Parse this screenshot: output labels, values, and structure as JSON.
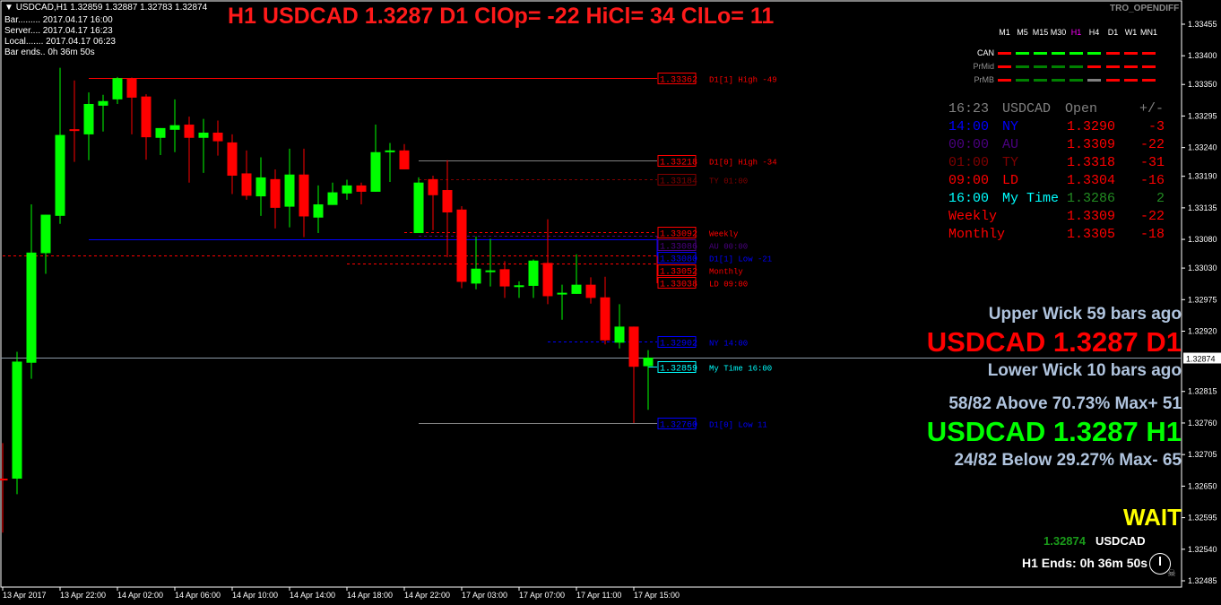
{
  "header": {
    "symbol_line": "USDCAD,H1  1.32859 1.32887 1.32783 1.32874",
    "bar": "Bar......... 2017.04.17 16:00",
    "server": "Server.... 2017.04.17 16:23",
    "local": "Local....... 2017.04.17 06:23",
    "bar_ends": "Bar ends.. 0h 36m 50s"
  },
  "title": "H1 USDCAD 1.3287  D1 ClOp= -22 HiCl= 34 ClLo= 11",
  "indicator_name": "TRO_OPENDIFF",
  "timeframes": [
    "M1",
    "M5",
    "M15",
    "M30",
    "H1",
    "H4",
    "D1",
    "W1",
    "MN1"
  ],
  "matrix": [
    {
      "label": "CAN",
      "colors": [
        "#ff0000",
        "#00ff00",
        "#00ff00",
        "#00ff00",
        "#00ff00",
        "#00ff00",
        "#ff0000",
        "#ff0000",
        "#ff0000"
      ]
    },
    {
      "label": "PrMid",
      "colors": [
        "#ff0000",
        "#008000",
        "#008000",
        "#008000",
        "#008000",
        "#ff0000",
        "#ff0000",
        "#ff0000",
        "#ff0000"
      ]
    },
    {
      "label": "PrMB",
      "colors": [
        "#ff0000",
        "#008000",
        "#008000",
        "#008000",
        "#008000",
        "#808080",
        "#ff0000",
        "#ff0000",
        "#ff0000"
      ]
    }
  ],
  "table": {
    "header": {
      "time": "16:23",
      "name": "USDCAD",
      "open": "Open",
      "diff": "+/-"
    },
    "rows": [
      {
        "time": "14:00",
        "name": "NY",
        "open": "1.3290",
        "diff": "-3",
        "color": "#0000ff",
        "vcolor": "#ff0000"
      },
      {
        "time": "00:00",
        "name": "AU",
        "open": "1.3309",
        "diff": "-22",
        "color": "#4b0082",
        "vcolor": "#ff0000"
      },
      {
        "time": "01:00",
        "name": "TY",
        "open": "1.3318",
        "diff": "-31",
        "color": "#800000",
        "vcolor": "#ff0000"
      },
      {
        "time": "09:00",
        "name": "LD",
        "open": "1.3304",
        "diff": "-16",
        "color": "#ff0000",
        "vcolor": "#ff0000"
      },
      {
        "time": "16:00",
        "name": "My Time",
        "open": "1.3286",
        "diff": "2",
        "color": "#00ffff",
        "vcolor": "#228b22"
      },
      {
        "time": "",
        "name": "Weekly",
        "open": "1.3309",
        "diff": "-22",
        "color": "#ff0000",
        "vcolor": "#ff0000"
      },
      {
        "time": "",
        "name": "Monthly",
        "open": "1.3305",
        "diff": "-18",
        "color": "#ff0000",
        "vcolor": "#ff0000"
      }
    ]
  },
  "stats": {
    "upper_wick": "Upper Wick 59 bars ago",
    "d1_price": "USDCAD 1.3287 D1",
    "lower_wick": "Lower Wick 10 bars ago",
    "above": "58/82 Above 70.73% Max+ 51",
    "h1_price": "USDCAD 1.3287 H1",
    "below": "24/82 Below 29.27% Max- 65",
    "signal": "WAIT",
    "bid": "1.32874",
    "symbol": "USDCAD",
    "ends": "H1 Ends: 0h 36m 50s"
  },
  "colors": {
    "bull": "#00ff00",
    "bear": "#ff0000",
    "d1_text": "#ff0000",
    "h1_text": "#00ff00",
    "signal": "#ffff00",
    "stat_text": "#b0c4de"
  },
  "price_axis": {
    "ticks": [
      "1.33455",
      "1.33400",
      "1.33350",
      "1.33295",
      "1.33240",
      "1.33190",
      "1.33135",
      "1.33080",
      "1.33030",
      "1.32975",
      "1.32920",
      "1.32815",
      "1.32760",
      "1.32705",
      "1.32650",
      "1.32595",
      "1.32540",
      "1.32485"
    ],
    "current": "1.32874"
  },
  "time_axis": [
    "13 Apr 2017",
    "13 Apr 22:00",
    "14 Apr 02:00",
    "14 Apr 06:00",
    "14 Apr 10:00",
    "14 Apr 14:00",
    "14 Apr 18:00",
    "14 Apr 22:00",
    "17 Apr 03:00",
    "17 Apr 07:00",
    "17 Apr 11:00",
    "17 Apr 15:00"
  ],
  "levels": [
    {
      "price": "1.33362",
      "label": "D1[1] High  -49",
      "color": "#ff0000",
      "style": "solid",
      "from_bar": 6
    },
    {
      "price": "1.33218",
      "label": "D1[0] High  -34",
      "color": "#ff0000",
      "line": "#808080",
      "style": "solid",
      "from_bar": 29
    },
    {
      "price": "1.33184",
      "label": "TY 01:00",
      "color": "#800000",
      "style": "dash",
      "from_bar": 29
    },
    {
      "price": "1.33092",
      "label": "Weekly",
      "color": "#ff0000",
      "style": "dash",
      "from_bar": 28
    },
    {
      "price": "1.33086",
      "label": "AU 00:00",
      "color": "#4b0082",
      "style": "dash",
      "from_bar": 29
    },
    {
      "price": "1.33080",
      "label": "D1[1] Low  -21",
      "color": "#0000ff",
      "style": "solid",
      "from_bar": 6
    },
    {
      "price": "1.33052",
      "label": "Monthly",
      "color": "#ff0000",
      "style": "dash",
      "from_bar": 0
    },
    {
      "price": "1.33038",
      "label": "LD 09:00",
      "color": "#ff0000",
      "style": "dash",
      "from_bar": 24
    },
    {
      "price": "1.32902",
      "label": "NY 14:00",
      "color": "#0000ff",
      "style": "dash",
      "from_bar": 38
    },
    {
      "price": "1.32859",
      "label": "My Time 16:00",
      "color": "#00ffff",
      "style": "solid",
      "from_bar": 45
    },
    {
      "price": "1.32760",
      "label": "D1[0] Low  11",
      "color": "#0000ff",
      "line": "#808080",
      "style": "solid",
      "from_bar": 29
    }
  ],
  "chart_data": {
    "type": "candlestick",
    "symbol": "USDCAD",
    "timeframe": "H1",
    "ylim": [
      1.3247,
      1.3347
    ],
    "current_price": 1.32874,
    "ohlc": [
      [
        1.32663,
        1.32725,
        1.32569,
        1.32661
      ],
      [
        1.32663,
        1.32884,
        1.32636,
        1.32867
      ],
      [
        1.32865,
        1.33141,
        1.32837,
        1.33057
      ],
      [
        1.33056,
        1.33123,
        1.3302,
        1.33123
      ],
      [
        1.33121,
        1.33379,
        1.33107,
        1.33262
      ],
      [
        1.33272,
        1.33357,
        1.33215,
        1.33269
      ],
      [
        1.33263,
        1.33336,
        1.33218,
        1.33316
      ],
      [
        1.33313,
        1.33332,
        1.33268,
        1.33321
      ],
      [
        1.33324,
        1.33363,
        1.33316,
        1.33361
      ],
      [
        1.33361,
        1.33362,
        1.33263,
        1.33327
      ],
      [
        1.33329,
        1.33333,
        1.33219,
        1.33258
      ],
      [
        1.33257,
        1.33274,
        1.33227,
        1.33274
      ],
      [
        1.33271,
        1.33324,
        1.33232,
        1.33279
      ],
      [
        1.3328,
        1.33294,
        1.33179,
        1.33257
      ],
      [
        1.33257,
        1.3329,
        1.33196,
        1.33266
      ],
      [
        1.33266,
        1.33287,
        1.33226,
        1.33251
      ],
      [
        1.33249,
        1.33263,
        1.33159,
        1.33191
      ],
      [
        1.33195,
        1.33235,
        1.33149,
        1.33156
      ],
      [
        1.33155,
        1.33223,
        1.33121,
        1.33188
      ],
      [
        1.33185,
        1.33202,
        1.33099,
        1.33135
      ],
      [
        1.33137,
        1.33238,
        1.33101,
        1.33193
      ],
      [
        1.33193,
        1.33238,
        1.33084,
        1.3312
      ],
      [
        1.33118,
        1.33174,
        1.33091,
        1.33141
      ],
      [
        1.3314,
        1.33179,
        1.3314,
        1.33162
      ],
      [
        1.3316,
        1.33184,
        1.33149,
        1.33174
      ],
      [
        1.33174,
        1.33179,
        1.33141,
        1.33163
      ],
      [
        1.33163,
        1.3328,
        1.33163,
        1.33232
      ],
      [
        1.33234,
        1.33248,
        1.3318,
        1.33235
      ],
      [
        1.33235,
        1.33246,
        1.33202,
        1.33202
      ],
      [
        1.33091,
        1.33188,
        1.33091,
        1.33179
      ],
      [
        1.33185,
        1.33191,
        1.33096,
        1.33157
      ],
      [
        1.33166,
        1.33218,
        1.33049,
        1.33127
      ],
      [
        1.33132,
        1.33138,
        1.32995,
        1.33006
      ],
      [
        1.33003,
        1.33085,
        1.32993,
        1.33029
      ],
      [
        1.33026,
        1.33081,
        1.32998,
        1.33026
      ],
      [
        1.33028,
        1.33042,
        1.32978,
        1.32998
      ],
      [
        1.33,
        1.33007,
        1.32978,
        1.33
      ],
      [
        1.32999,
        1.33045,
        1.32978,
        1.33043
      ],
      [
        1.33039,
        1.33115,
        1.32967,
        1.32981
      ],
      [
        1.32987,
        1.33001,
        1.3294,
        1.32987
      ],
      [
        1.32985,
        1.33054,
        1.32985,
        1.33001
      ],
      [
        1.33001,
        1.33014,
        1.32968,
        1.32978
      ],
      [
        1.32979,
        1.33015,
        1.32897,
        1.32904
      ],
      [
        1.329,
        1.32967,
        1.3289,
        1.32928
      ],
      [
        1.32928,
        1.32928,
        1.3276,
        1.32858
      ],
      [
        1.32859,
        1.32887,
        1.32783,
        1.32874
      ]
    ]
  }
}
